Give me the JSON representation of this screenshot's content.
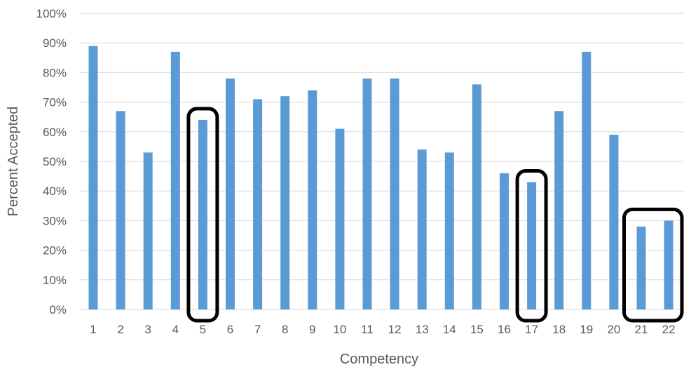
{
  "chart_data": {
    "type": "bar",
    "xlabel": "Competency",
    "ylabel": "Percent Accepted",
    "ylim": [
      0,
      100
    ],
    "y_ticks": [
      "0%",
      "10%",
      "20%",
      "30%",
      "40%",
      "50%",
      "60%",
      "70%",
      "80%",
      "90%",
      "100%"
    ],
    "grid": true,
    "legend": "none",
    "categories": [
      "1",
      "2",
      "3",
      "4",
      "5",
      "6",
      "7",
      "8",
      "9",
      "10",
      "11",
      "12",
      "13",
      "14",
      "15",
      "16",
      "17",
      "18",
      "19",
      "20",
      "21",
      "22"
    ],
    "values": [
      89,
      67,
      53,
      87,
      64,
      78,
      71,
      72,
      74,
      61,
      78,
      78,
      54,
      53,
      76,
      46,
      43,
      67,
      87,
      59,
      28,
      30
    ],
    "bar_color": "#5b9bd5",
    "highlighted_groups": [
      [
        "5"
      ],
      [
        "17"
      ],
      [
        "21",
        "22"
      ]
    ]
  }
}
